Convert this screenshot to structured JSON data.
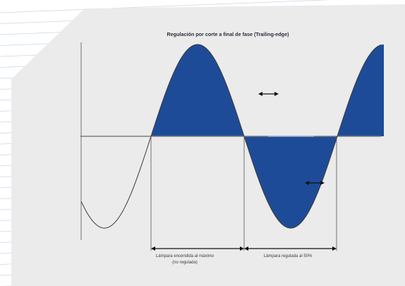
{
  "diagram": {
    "title": "Regulación por corte a final de fase (Trailing-edge)",
    "captions": {
      "left_line1": "Lámpara encendida al máximo",
      "left_line2": "(no regulada)",
      "right": "Lámpara regulada al 50%"
    },
    "regulation_level_percent": 50
  },
  "colors": {
    "page_background": "#ffffff",
    "panel_background": "#ebebeb",
    "fill": "#1e4b97",
    "curve": "#3a3a3a",
    "axis": "#7d7d7d",
    "stripe": "#c9d7e6"
  },
  "icons": {
    "double_arrow": "left-right-arrow-icon"
  }
}
